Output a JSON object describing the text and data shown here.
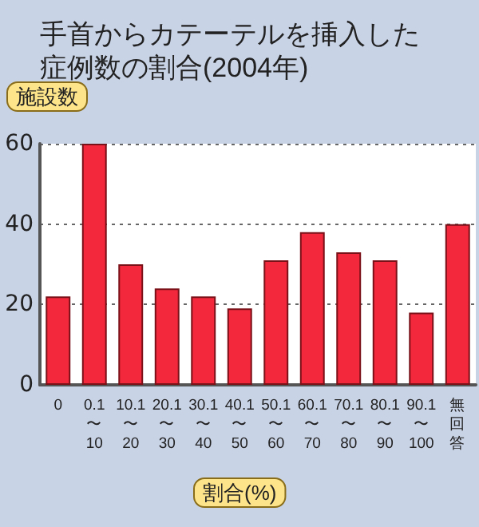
{
  "chart_data": {
    "type": "bar",
    "title": "手首からカテーテルを挿入した症例数の割合(2004年)",
    "ylabel": "施設数",
    "xlabel": "割合(%)",
    "categories": [
      "0",
      "0.1\n〜\n10",
      "10.1\n〜\n20",
      "20.1\n〜\n30",
      "30.1\n〜\n40",
      "40.1\n〜\n50",
      "50.1\n〜\n60",
      "60.1\n〜\n70",
      "70.1\n〜\n80",
      "80.1\n〜\n90",
      "90.1\n〜\n100",
      "無回答"
    ],
    "values": [
      22,
      60,
      30,
      24,
      22,
      19,
      31,
      38,
      33,
      31,
      18,
      40
    ],
    "color": "#f4283c",
    "ylim": [
      0,
      60
    ],
    "yticks": [
      0,
      20,
      40,
      60
    ],
    "grid": "y"
  }
}
